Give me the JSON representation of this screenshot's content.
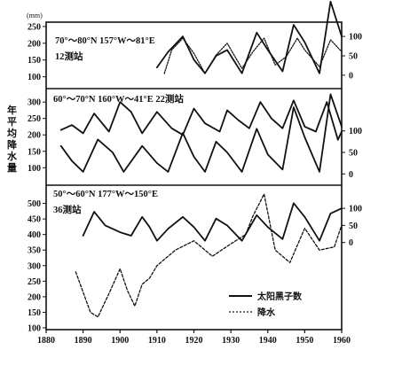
{
  "chart_data": {
    "type": "line",
    "y_unit": "(mm)",
    "ylabel": "年平均降水量",
    "x_ticks": [
      1880,
      1890,
      1900,
      1910,
      1920,
      1930,
      1940,
      1950,
      1960
    ],
    "xlim": [
      1880,
      1960
    ],
    "legend": {
      "placement": "bottom-right",
      "entries": [
        "太阳黑子数",
        "降水"
      ]
    },
    "panels": [
      {
        "label": "70°～80°N   157°W～81°E",
        "stations": "12测站",
        "left_ticks": [
          100,
          150,
          200,
          250
        ],
        "left_ylim": [
          70,
          255
        ],
        "right_ticks": [
          0,
          50,
          100
        ],
        "right_ylim": [
          -30,
          130
        ],
        "series": [
          {
            "name": "太阳黑子数",
            "axis": "right",
            "style": "solid",
            "x": [
              1910,
              1913,
              1917,
              1920,
              1923,
              1926,
              1929,
              1933,
              1937,
              1940,
              1944,
              1947,
              1950,
              1954,
              1957,
              1960
            ],
            "values": [
              20,
              60,
              100,
              40,
              5,
              50,
              65,
              5,
              110,
              65,
              10,
              130,
              85,
              5,
              190,
              100
            ]
          },
          {
            "name": "降水",
            "axis": "left",
            "style": "dotted",
            "x": [
              1912,
              1914,
              1917,
              1920,
              1923,
              1926,
              1929,
              1933,
              1936,
              1939,
              1942,
              1945,
              1948,
              1950,
              1954,
              1957,
              1960
            ],
            "values": [
              110,
              180,
              215,
              170,
              110,
              165,
              200,
              125,
              175,
              215,
              135,
              160,
              215,
              180,
              130,
              210,
              175
            ]
          }
        ]
      },
      {
        "label": "60°～70°N   160°W～41°E  22测站",
        "stations": "",
        "left_ticks": [
          100,
          150,
          200,
          250,
          300
        ],
        "left_ylim": [
          55,
          330
        ],
        "right_ticks": [
          0,
          50,
          100
        ],
        "right_ylim": [
          -20,
          190
        ],
        "series": [
          {
            "name": "太阳黑子数",
            "axis": "right",
            "style": "solid",
            "x": [
              1884,
              1887,
              1890,
              1894,
              1898,
              1901,
              1906,
              1910,
              1913,
              1917,
              1920,
              1923,
              1926,
              1929,
              1933,
              1937,
              1940,
              1944,
              1947,
              1950,
              1954,
              1957,
              1960
            ],
            "values": [
              65,
              30,
              5,
              80,
              50,
              5,
              65,
              25,
              5,
              95,
              40,
              5,
              75,
              50,
              5,
              105,
              45,
              10,
              155,
              85,
              5,
              185,
              110
            ]
          },
          {
            "name": "降水",
            "axis": "left",
            "style": "solid",
            "x": [
              1884,
              1887,
              1890,
              1893,
              1897,
              1900,
              1903,
              1906,
              1910,
              1914,
              1917,
              1920,
              1923,
              1927,
              1929,
              1932,
              1935,
              1938,
              1941,
              1944,
              1947,
              1950,
              1953,
              1956,
              1959,
              1960
            ],
            "values": [
              215,
              230,
              205,
              265,
              210,
              300,
              270,
              205,
              270,
              220,
              200,
              280,
              235,
              210,
              275,
              245,
              220,
              300,
              250,
              220,
              305,
              225,
              210,
              300,
              185,
              210
            ]
          }
        ]
      },
      {
        "label": "50°～60°N   177°W～150°E",
        "stations": "36测站",
        "left_ticks": [
          100,
          150,
          200,
          250,
          300,
          350,
          400,
          450,
          500
        ],
        "left_ylim": [
          100,
          550
        ],
        "right_ticks": [
          0,
          50,
          100
        ],
        "right_ylim": [
          -250,
          160
        ],
        "series": [
          {
            "name": "太阳黑子数",
            "axis": "right",
            "style": "solid",
            "x": [
              1890,
              1893,
              1896,
              1900,
              1903,
              1906,
              1908,
              1910,
              1913,
              1917,
              1920,
              1923,
              1926,
              1929,
              1933,
              1937,
              1940,
              1944,
              1947,
              1950,
              1954,
              1957,
              1960
            ],
            "values": [
              20,
              90,
              50,
              30,
              20,
              75,
              45,
              5,
              40,
              75,
              45,
              5,
              70,
              50,
              5,
              80,
              45,
              10,
              115,
              75,
              5,
              85,
              100
            ]
          },
          {
            "name": "降水",
            "axis": "left",
            "style": "dashed",
            "x": [
              1888,
              1892,
              1894,
              1897,
              1900,
              1902,
              1904,
              1906,
              1908,
              1910,
              1915,
              1920,
              1925,
              1930,
              1934,
              1936,
              1939,
              1942,
              1946,
              1950,
              1954,
              1958,
              1960
            ],
            "values": [
              280,
              150,
              135,
              210,
              290,
              220,
              170,
              240,
              260,
              300,
              350,
              380,
              330,
              370,
              400,
              460,
              530,
              350,
              310,
              420,
              350,
              360,
              430
            ]
          }
        ]
      }
    ]
  }
}
